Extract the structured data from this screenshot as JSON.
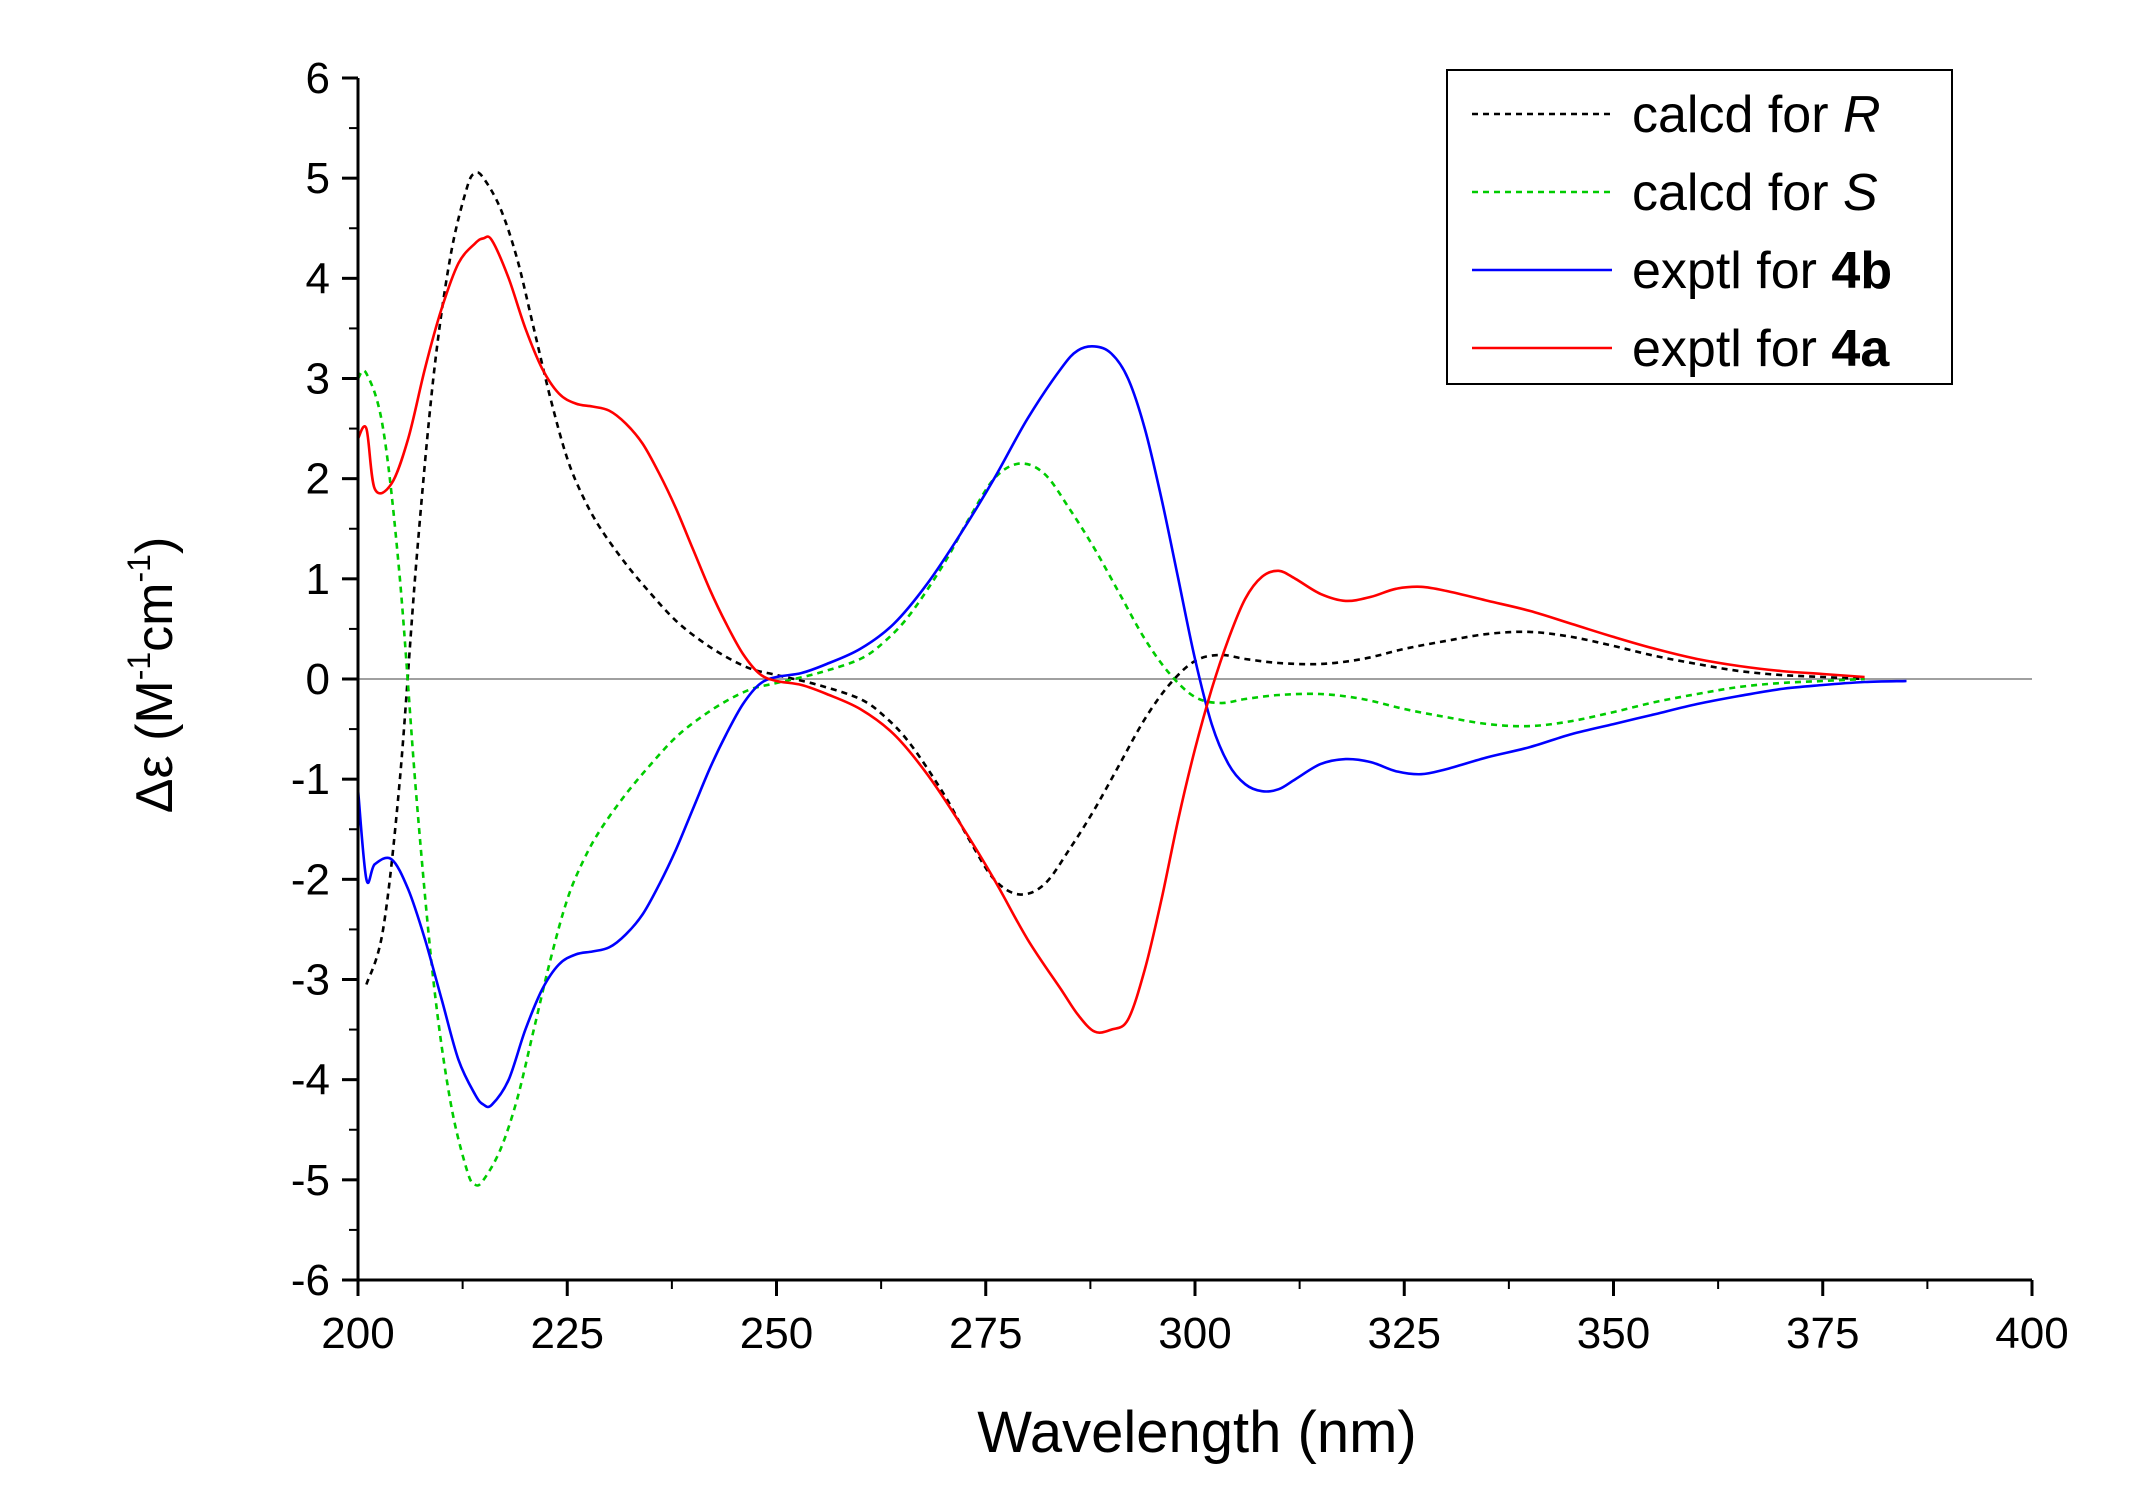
{
  "chart_data": {
    "type": "line",
    "title": "",
    "xlabel": "Wavelength (nm)",
    "ylabel": "Δε (M-1cm-1)",
    "ylabel_parts": {
      "prefix": "Δε (M",
      "sup1": "-1",
      "mid": "cm",
      "sup2": "-1",
      "suffix": ")"
    },
    "xlim": [
      200,
      400
    ],
    "ylim": [
      -6,
      6
    ],
    "x_ticks": [
      200,
      225,
      250,
      275,
      300,
      325,
      350,
      375,
      400
    ],
    "x_tick_labels": [
      "200",
      "225",
      "250",
      "275",
      "300",
      "325",
      "350",
      "375",
      "400"
    ],
    "y_ticks": [
      -6,
      -5,
      -4,
      -3,
      -2,
      -1,
      0,
      1,
      2,
      3,
      4,
      5,
      6
    ],
    "y_tick_labels": [
      "-6",
      "-5",
      "-4",
      "-3",
      "-2",
      "-1",
      "0",
      "1",
      "2",
      "3",
      "4",
      "5",
      "6"
    ],
    "grid": false,
    "zero_line": true,
    "legend_position": "top-right",
    "series": [
      {
        "name": "calcd for R",
        "legend_prefix": "calcd for ",
        "legend_em": "R",
        "legend_em_style": "italic",
        "color": "#000000",
        "dash": true,
        "x": [
          201,
          203,
          205,
          207,
          209,
          211,
          213,
          214,
          215,
          217,
          219,
          221,
          223,
          225,
          227,
          229,
          232,
          235,
          238,
          241,
          244,
          247,
          250,
          255,
          260,
          263,
          266,
          270,
          273,
          276,
          279,
          282,
          285,
          288,
          291,
          294,
          297,
          300,
          303,
          306,
          310,
          315,
          320,
          325,
          330,
          335,
          340,
          345,
          350,
          355,
          360,
          365,
          370,
          375,
          380
        ],
        "y": [
          -3.05,
          -2.5,
          -1.0,
          1.2,
          3.0,
          4.2,
          4.9,
          5.05,
          5.0,
          4.7,
          4.2,
          3.5,
          2.8,
          2.2,
          1.8,
          1.5,
          1.15,
          0.85,
          0.58,
          0.38,
          0.22,
          0.1,
          0.04,
          -0.06,
          -0.2,
          -0.38,
          -0.65,
          -1.15,
          -1.6,
          -2.0,
          -2.15,
          -2.05,
          -1.7,
          -1.3,
          -0.85,
          -0.4,
          -0.05,
          0.18,
          0.24,
          0.2,
          0.16,
          0.15,
          0.2,
          0.3,
          0.38,
          0.45,
          0.47,
          0.42,
          0.33,
          0.23,
          0.15,
          0.08,
          0.04,
          0.02,
          0.0
        ]
      },
      {
        "name": "calcd for S",
        "legend_prefix": "calcd for ",
        "legend_em": "S",
        "legend_em_style": "italic",
        "color": "#00cc00",
        "dash": true,
        "x": [
          200,
          201,
          203,
          205,
          207,
          209,
          211,
          213,
          214,
          215,
          217,
          219,
          221,
          223,
          225,
          227,
          229,
          232,
          235,
          238,
          241,
          244,
          247,
          250,
          255,
          260,
          263,
          266,
          270,
          273,
          276,
          279,
          282,
          285,
          288,
          291,
          294,
          297,
          300,
          303,
          306,
          310,
          315,
          320,
          325,
          330,
          335,
          340,
          345,
          350,
          355,
          360,
          365,
          370,
          375,
          380
        ],
        "y": [
          3.0,
          3.05,
          2.5,
          1.0,
          -1.2,
          -3.0,
          -4.2,
          -4.9,
          -5.05,
          -5.0,
          -4.7,
          -4.2,
          -3.5,
          -2.8,
          -2.2,
          -1.8,
          -1.5,
          -1.15,
          -0.85,
          -0.58,
          -0.38,
          -0.22,
          -0.1,
          -0.04,
          0.06,
          0.2,
          0.38,
          0.65,
          1.15,
          1.6,
          2.0,
          2.15,
          2.05,
          1.7,
          1.3,
          0.85,
          0.4,
          0.05,
          -0.18,
          -0.24,
          -0.2,
          -0.16,
          -0.15,
          -0.2,
          -0.3,
          -0.38,
          -0.45,
          -0.47,
          -0.42,
          -0.33,
          -0.23,
          -0.15,
          -0.08,
          -0.04,
          -0.02,
          0.0
        ]
      },
      {
        "name": "exptl for 4b",
        "legend_prefix": "exptl for ",
        "legend_em": "4b",
        "legend_em_style": "bold",
        "color": "#0000ff",
        "dash": false,
        "x": [
          200,
          201,
          202,
          204,
          206,
          208,
          210,
          212,
          214,
          215,
          216,
          218,
          220,
          222,
          224,
          226,
          228,
          230,
          232,
          234,
          236,
          238,
          240,
          242,
          244,
          246,
          248,
          250,
          253,
          256,
          260,
          264,
          268,
          272,
          276,
          280,
          284,
          286,
          288,
          290,
          292,
          294,
          296,
          298,
          300,
          302,
          304,
          306,
          308,
          310,
          312,
          315,
          318,
          321,
          324,
          327,
          330,
          335,
          340,
          345,
          350,
          355,
          360,
          365,
          370,
          375,
          380,
          385
        ],
        "y": [
          -1.1,
          -2.0,
          -1.85,
          -1.8,
          -2.1,
          -2.6,
          -3.2,
          -3.8,
          -4.15,
          -4.25,
          -4.25,
          -4.0,
          -3.5,
          -3.1,
          -2.85,
          -2.75,
          -2.72,
          -2.68,
          -2.55,
          -2.35,
          -2.05,
          -1.7,
          -1.3,
          -0.9,
          -0.55,
          -0.25,
          -0.05,
          0.02,
          0.06,
          0.15,
          0.3,
          0.55,
          0.95,
          1.45,
          2.0,
          2.6,
          3.1,
          3.28,
          3.32,
          3.25,
          3.0,
          2.5,
          1.8,
          1.0,
          0.2,
          -0.45,
          -0.85,
          -1.05,
          -1.12,
          -1.1,
          -1.0,
          -0.85,
          -0.8,
          -0.83,
          -0.92,
          -0.95,
          -0.9,
          -0.78,
          -0.68,
          -0.55,
          -0.45,
          -0.35,
          -0.25,
          -0.17,
          -0.1,
          -0.06,
          -0.03,
          -0.02
        ]
      },
      {
        "name": "exptl for 4a",
        "legend_prefix": "exptl for ",
        "legend_em": "4a",
        "legend_em_style": "bold",
        "color": "#ff0000",
        "dash": false,
        "x": [
          200,
          201,
          202,
          204,
          206,
          208,
          210,
          212,
          214,
          215,
          216,
          218,
          220,
          222,
          224,
          226,
          228,
          230,
          232,
          234,
          236,
          238,
          240,
          242,
          244,
          246,
          248,
          250,
          253,
          256,
          260,
          264,
          268,
          272,
          276,
          280,
          284,
          286,
          288,
          290,
          292,
          294,
          296,
          298,
          300,
          302,
          304,
          306,
          308,
          310,
          312,
          315,
          318,
          321,
          324,
          327,
          330,
          335,
          340,
          345,
          350,
          355,
          360,
          365,
          370,
          375,
          380
        ],
        "y": [
          2.4,
          2.5,
          1.9,
          1.95,
          2.4,
          3.1,
          3.7,
          4.15,
          4.35,
          4.4,
          4.38,
          4.0,
          3.5,
          3.1,
          2.85,
          2.75,
          2.72,
          2.68,
          2.55,
          2.35,
          2.05,
          1.7,
          1.3,
          0.9,
          0.55,
          0.25,
          0.05,
          -0.02,
          -0.06,
          -0.15,
          -0.3,
          -0.55,
          -0.95,
          -1.45,
          -2.0,
          -2.6,
          -3.1,
          -3.35,
          -3.52,
          -3.5,
          -3.4,
          -2.9,
          -2.2,
          -1.4,
          -0.7,
          -0.1,
          0.4,
          0.8,
          1.02,
          1.08,
          1.0,
          0.85,
          0.78,
          0.82,
          0.9,
          0.92,
          0.88,
          0.78,
          0.68,
          0.55,
          0.42,
          0.3,
          0.2,
          0.13,
          0.08,
          0.05,
          0.02
        ]
      }
    ]
  }
}
